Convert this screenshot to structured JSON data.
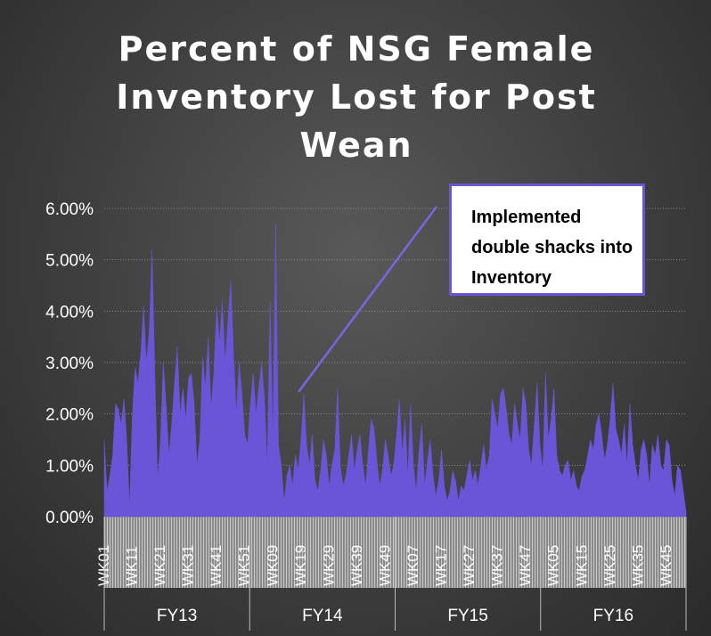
{
  "chart_data": {
    "type": "area",
    "title": "Percent of NSG Female Inventory Lost for Post Wean",
    "annotation": "Implemented double shacks into Inventory",
    "color": "#6a55d8",
    "grid": true,
    "ylim": [
      0,
      6
    ],
    "yticks": [
      {
        "value": 0,
        "label": "0.00%"
      },
      {
        "value": 1,
        "label": "1.00%"
      },
      {
        "value": 2,
        "label": "2.00%"
      },
      {
        "value": 3,
        "label": "3.00%"
      },
      {
        "value": 4,
        "label": "4.00%"
      },
      {
        "value": 5,
        "label": "5.00%"
      },
      {
        "value": 6,
        "label": "6.00%"
      }
    ],
    "groups": [
      "FY13",
      "FY14",
      "FY15",
      "FY16"
    ],
    "categories": [
      "WK01",
      null,
      null,
      null,
      null,
      null,
      null,
      null,
      null,
      null,
      "WK11",
      null,
      null,
      null,
      null,
      null,
      null,
      null,
      null,
      null,
      "WK21",
      null,
      null,
      null,
      null,
      null,
      null,
      null,
      null,
      null,
      "WK31",
      null,
      null,
      null,
      null,
      null,
      null,
      null,
      null,
      null,
      "WK41",
      null,
      null,
      null,
      null,
      null,
      null,
      null,
      null,
      null,
      "WK51",
      null,
      null,
      null,
      null,
      null,
      null,
      null,
      null,
      null,
      "WK09",
      null,
      null,
      null,
      null,
      null,
      null,
      null,
      null,
      null,
      "WK19",
      null,
      null,
      null,
      null,
      null,
      null,
      null,
      null,
      null,
      "WK29",
      null,
      null,
      null,
      null,
      null,
      null,
      null,
      null,
      null,
      "WK39",
      null,
      null,
      null,
      null,
      null,
      null,
      null,
      null,
      null,
      "WK49",
      null,
      null,
      null,
      null,
      null,
      null,
      null,
      null,
      null,
      "WK07",
      null,
      null,
      null,
      null,
      null,
      null,
      null,
      null,
      null,
      "WK17",
      null,
      null,
      null,
      null,
      null,
      null,
      null,
      null,
      null,
      "WK27",
      null,
      null,
      null,
      null,
      null,
      null,
      null,
      null,
      null,
      "WK37",
      null,
      null,
      null,
      null,
      null,
      null,
      null,
      null,
      null,
      "WK47",
      null,
      null,
      null,
      null,
      null,
      null,
      null,
      null,
      null,
      "WK05",
      null,
      null,
      null,
      null,
      null,
      null,
      null,
      null,
      null,
      "WK15",
      null,
      null,
      null,
      null,
      null,
      null,
      null,
      null,
      null,
      "WK25",
      null,
      null,
      null,
      null,
      null,
      null,
      null,
      null,
      null,
      "WK35",
      null,
      null,
      null,
      null,
      null,
      null,
      null,
      null,
      null,
      "WK45",
      null,
      null,
      null,
      null,
      null,
      null,
      null
    ],
    "values": [
      1.5,
      0.5,
      0.8,
      1.2,
      2.2,
      2.1,
      1.8,
      2.3,
      1.5,
      0.2,
      2.0,
      2.9,
      2.6,
      3.2,
      4.1,
      3.0,
      3.6,
      5.2,
      2.8,
      0.7,
      1.5,
      3.0,
      2.2,
      1.2,
      1.8,
      2.6,
      3.3,
      2.0,
      2.5,
      1.9,
      2.7,
      2.8,
      2.2,
      1.0,
      1.5,
      3.1,
      2.5,
      3.5,
      2.1,
      2.8,
      4.1,
      3.4,
      4.2,
      3.0,
      3.8,
      4.6,
      3.2,
      2.0,
      3.0,
      2.4,
      1.6,
      1.4,
      2.2,
      2.8,
      2.0,
      2.5,
      3.0,
      2.3,
      1.0,
      4.2,
      1.5,
      5.7,
      1.4,
      1.0,
      0.3,
      0.8,
      1.0,
      0.6,
      1.2,
      0.9,
      1.5,
      2.4,
      1.4,
      1.0,
      1.6,
      0.7,
      0.5,
      0.9,
      1.5,
      1.2,
      0.6,
      1.0,
      1.3,
      2.5,
      1.0,
      0.6,
      0.8,
      1.2,
      1.6,
      0.9,
      1.3,
      1.6,
      1.0,
      0.6,
      1.3,
      1.9,
      1.7,
      1.1,
      0.6,
      0.9,
      1.5,
      1.2,
      0.8,
      1.0,
      1.6,
      2.3,
      1.2,
      1.9,
      0.8,
      2.2,
      1.0,
      0.5,
      1.3,
      1.8,
      0.6,
      1.1,
      1.5,
      0.8,
      0.4,
      0.7,
      1.3,
      0.6,
      0.3,
      0.5,
      0.9,
      0.7,
      0.3,
      0.6,
      0.5,
      0.8,
      1.1,
      0.7,
      0.9,
      0.6,
      1.0,
      1.4,
      0.9,
      1.2,
      2.3,
      2.0,
      1.7,
      2.4,
      2.5,
      2.1,
      1.6,
      1.4,
      2.2,
      1.8,
      1.5,
      2.5,
      2.2,
      1.3,
      1.0,
      1.8,
      2.6,
      1.4,
      0.9,
      2.8,
      1.5,
      1.9,
      2.5,
      1.2,
      0.9,
      0.8,
      1.0,
      1.1,
      0.7,
      0.9,
      0.6,
      0.5,
      0.8,
      0.9,
      1.2,
      1.5,
      1.3,
      1.8,
      2.0,
      1.6,
      1.1,
      1.4,
      1.9,
      2.6,
      1.7,
      1.5,
      1.2,
      1.8,
      1.0,
      2.2,
      1.4,
      1.0,
      0.7,
      1.3,
      1.5,
      1.2,
      0.6,
      1.4,
      1.2,
      1.6,
      1.0,
      0.9,
      1.5,
      1.4,
      0.7,
      0.4,
      1.0,
      0.9,
      0.5,
      0.1
    ]
  }
}
